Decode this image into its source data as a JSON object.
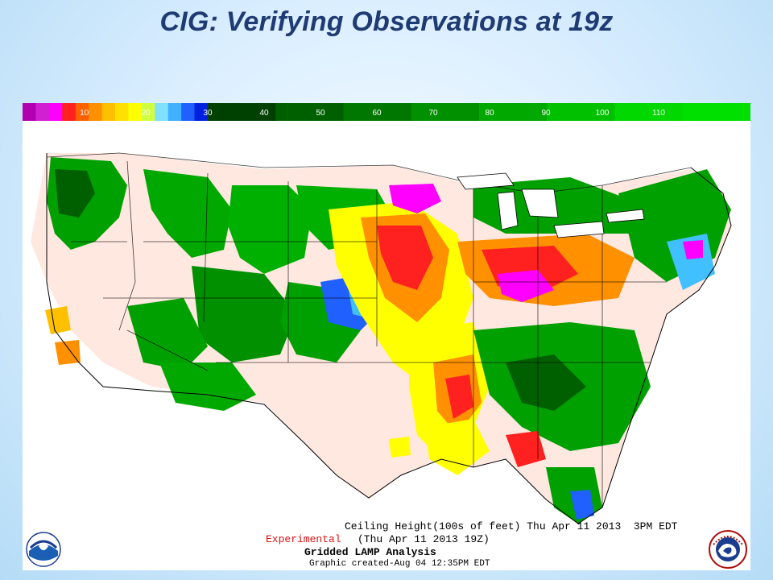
{
  "slide": {
    "title": "CIG: Verifying Observations at 19z"
  },
  "legend": {
    "tick_labels": [
      "10",
      "20",
      "30",
      "40",
      "50",
      "60",
      "70",
      "80",
      "90",
      "100",
      "110"
    ],
    "colors": {
      "lowest": [
        "#b000b0",
        "#d020d0",
        "#ff00ff",
        "#ff2020",
        "#ff6000",
        "#ff9000",
        "#ffc000",
        "#ffe000",
        "#ffff00",
        "#d0ff40",
        "#80e0ff",
        "#40b0ff",
        "#2060ff",
        "#0020e0"
      ],
      "greens": [
        "#004000",
        "#006000",
        "#007800",
        "#009000",
        "#00a800",
        "#00c000",
        "#00d800",
        "#00e000"
      ]
    }
  },
  "map": {
    "background_fill": "#ffe8e0",
    "legend_colors": {
      "vfr_green": "#00a000",
      "dark_green": "#006000",
      "yellow": "#ffff00",
      "orange": "#ff9000",
      "red": "#ff2020",
      "magenta": "#ff00ff",
      "blue": "#2060ff",
      "cyan": "#40c0ff"
    }
  },
  "footer": {
    "ceiling_text": "Ceiling Height(100s of feet) Thu Apr 11 2013  3PM EDT",
    "experimental": "Experimental",
    "valid_time": "(Thu Apr 11 2013 19Z)",
    "product": "Gridded LAMP Analysis",
    "created": "Graphic created-Aug 04 12:35PM EDT"
  },
  "logos": {
    "noaa_text": "NOAA",
    "nws_text": "NATIONAL WEATHER SERVICE"
  }
}
